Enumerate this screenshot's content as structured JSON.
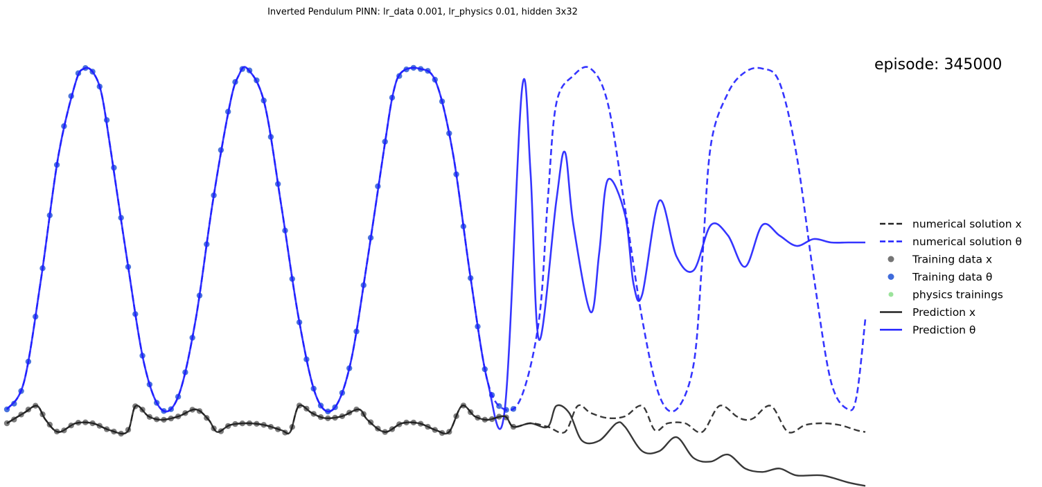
{
  "chart_data": {
    "type": "line",
    "title": "Inverted Pendulum PINN: lr_data 0.001, lr_physics 0.01, hidden 3x32",
    "annotation": "episode: 345000",
    "xlabel": "",
    "ylabel": "",
    "axes_visible": false,
    "grid": false,
    "xlim": [
      0,
      1
    ],
    "ylim": [
      -0.3,
      1.05
    ],
    "training_cutoff": 0.59,
    "legend_placement": "right",
    "legend": [
      {
        "label": "numerical solution x",
        "style": "dashed",
        "color": "#222222"
      },
      {
        "label": "numerical solution θ",
        "style": "dashed",
        "color": "#1f1fff"
      },
      {
        "label": "Training data x",
        "style": "marker",
        "color": "#666666"
      },
      {
        "label": "Training data θ",
        "style": "marker",
        "color": "#2a5bd7"
      },
      {
        "label": "physics trainings",
        "style": "marker",
        "color": "#90e090"
      },
      {
        "label": "Prediction x",
        "style": "solid",
        "color": "#222222"
      },
      {
        "label": "Prediction θ",
        "style": "solid",
        "color": "#1f1fff"
      }
    ],
    "series": [
      {
        "name": "numerical solution θ",
        "x": [
          0,
          0.02,
          0.04,
          0.06,
          0.08,
          0.09,
          0.1,
          0.11,
          0.12,
          0.14,
          0.16,
          0.18,
          0.2,
          0.22,
          0.24,
          0.26,
          0.27,
          0.28,
          0.3,
          0.32,
          0.34,
          0.36,
          0.38,
          0.4,
          0.42,
          0.44,
          0.45,
          0.46,
          0.48,
          0.5,
          0.52,
          0.54,
          0.56,
          0.58,
          0.6,
          0.62,
          0.63,
          0.64,
          0.66,
          0.68,
          0.7,
          0.72,
          0.74,
          0.76,
          0.78,
          0.8,
          0.81,
          0.82,
          0.84,
          0.86,
          0.88,
          0.9,
          0.92,
          0.94,
          0.96,
          0.98,
          0.99,
          1.0
        ],
        "y": [
          0.02,
          0.1,
          0.4,
          0.75,
          0.96,
          1.0,
          0.99,
          0.93,
          0.78,
          0.45,
          0.15,
          0.02,
          0.06,
          0.28,
          0.62,
          0.9,
          0.98,
          1.0,
          0.9,
          0.6,
          0.28,
          0.06,
          0.02,
          0.15,
          0.45,
          0.78,
          0.93,
          0.99,
          1.0,
          0.96,
          0.75,
          0.4,
          0.1,
          0.02,
          0.06,
          0.28,
          0.62,
          0.9,
          0.98,
          1.0,
          0.9,
          0.6,
          0.28,
          0.06,
          0.02,
          0.15,
          0.45,
          0.78,
          0.93,
          0.99,
          1.0,
          0.96,
          0.75,
          0.4,
          0.1,
          0.02,
          0.06,
          0.28
        ]
      },
      {
        "name": "Prediction θ",
        "x": [
          0,
          0.02,
          0.04,
          0.06,
          0.08,
          0.09,
          0.1,
          0.11,
          0.12,
          0.14,
          0.16,
          0.18,
          0.2,
          0.22,
          0.24,
          0.26,
          0.27,
          0.28,
          0.3,
          0.32,
          0.34,
          0.36,
          0.38,
          0.4,
          0.42,
          0.44,
          0.45,
          0.46,
          0.48,
          0.5,
          0.52,
          0.54,
          0.56,
          0.58,
          0.6,
          0.61,
          0.62,
          0.64,
          0.65,
          0.66,
          0.68,
          0.69,
          0.7,
          0.72,
          0.73,
          0.74,
          0.76,
          0.78,
          0.8,
          0.82,
          0.84,
          0.86,
          0.88,
          0.9,
          0.92,
          0.94,
          0.96,
          0.98,
          1.0
        ],
        "y": [
          0.02,
          0.1,
          0.4,
          0.75,
          0.96,
          1.0,
          0.99,
          0.93,
          0.78,
          0.45,
          0.15,
          0.02,
          0.06,
          0.28,
          0.62,
          0.9,
          0.98,
          1.0,
          0.9,
          0.6,
          0.28,
          0.06,
          0.02,
          0.15,
          0.45,
          0.78,
          0.93,
          0.99,
          1.0,
          0.96,
          0.75,
          0.4,
          0.1,
          0.02,
          0.94,
          0.7,
          0.22,
          0.62,
          0.76,
          0.55,
          0.3,
          0.47,
          0.68,
          0.58,
          0.38,
          0.35,
          0.62,
          0.46,
          0.42,
          0.55,
          0.52,
          0.43,
          0.55,
          0.52,
          0.49,
          0.51,
          0.5,
          0.5,
          0.5
        ]
      },
      {
        "name": "numerical solution x",
        "x": [
          0,
          0.02,
          0.035,
          0.045,
          0.06,
          0.08,
          0.1,
          0.12,
          0.14,
          0.15,
          0.165,
          0.18,
          0.2,
          0.22,
          0.235,
          0.245,
          0.26,
          0.28,
          0.3,
          0.32,
          0.33,
          0.34,
          0.355,
          0.37,
          0.39,
          0.41,
          0.42,
          0.44,
          0.46,
          0.48,
          0.5,
          0.515,
          0.53,
          0.545,
          0.56,
          0.58,
          0.59,
          0.61,
          0.63,
          0.65,
          0.665,
          0.68,
          0.7,
          0.72,
          0.74,
          0.755,
          0.77,
          0.79,
          0.81,
          0.83,
          0.85,
          0.86,
          0.87,
          0.89,
          0.91,
          0.93,
          0.95,
          0.97,
          0.99,
          1.0
        ],
        "y": [
          -0.02,
          0.01,
          0.03,
          -0.01,
          -0.045,
          -0.02,
          -0.02,
          -0.04,
          -0.045,
          0.03,
          0.0,
          -0.01,
          0.0,
          0.02,
          -0.01,
          -0.045,
          -0.025,
          -0.02,
          -0.025,
          -0.04,
          -0.045,
          0.03,
          0.01,
          -0.005,
          0.0,
          0.02,
          -0.01,
          -0.045,
          -0.02,
          -0.02,
          -0.04,
          -0.045,
          0.03,
          0.0,
          -0.01,
          0.0,
          -0.03,
          -0.02,
          -0.03,
          -0.045,
          0.03,
          0.01,
          -0.005,
          0.0,
          0.03,
          -0.04,
          -0.02,
          -0.02,
          -0.045,
          0.03,
          0.0,
          -0.01,
          -0.005,
          0.03,
          -0.045,
          -0.025,
          -0.02,
          -0.025,
          -0.04,
          -0.045
        ]
      },
      {
        "name": "Prediction x",
        "x": [
          0,
          0.02,
          0.035,
          0.045,
          0.06,
          0.08,
          0.1,
          0.12,
          0.14,
          0.15,
          0.165,
          0.18,
          0.2,
          0.22,
          0.235,
          0.245,
          0.26,
          0.28,
          0.3,
          0.32,
          0.33,
          0.34,
          0.355,
          0.37,
          0.39,
          0.41,
          0.42,
          0.44,
          0.46,
          0.48,
          0.5,
          0.515,
          0.53,
          0.545,
          0.56,
          0.58,
          0.59,
          0.61,
          0.63,
          0.64,
          0.655,
          0.67,
          0.69,
          0.71,
          0.72,
          0.74,
          0.76,
          0.78,
          0.8,
          0.82,
          0.84,
          0.86,
          0.88,
          0.9,
          0.92,
          0.95,
          0.98,
          1.0
        ],
        "y": [
          -0.02,
          0.01,
          0.03,
          -0.01,
          -0.045,
          -0.02,
          -0.02,
          -0.04,
          -0.045,
          0.03,
          0.0,
          -0.01,
          0.0,
          0.02,
          -0.01,
          -0.045,
          -0.025,
          -0.02,
          -0.025,
          -0.04,
          -0.045,
          0.03,
          0.01,
          -0.005,
          0.0,
          0.02,
          -0.01,
          -0.045,
          -0.02,
          -0.02,
          -0.04,
          -0.045,
          0.03,
          0.0,
          -0.01,
          0.0,
          -0.03,
          -0.02,
          -0.03,
          0.03,
          0.01,
          -0.07,
          -0.07,
          -0.02,
          -0.03,
          -0.1,
          -0.1,
          -0.06,
          -0.12,
          -0.13,
          -0.11,
          -0.15,
          -0.16,
          -0.15,
          -0.17,
          -0.17,
          -0.19,
          -0.2
        ]
      }
    ],
    "training_data_theta_count": 72,
    "training_data_x_count": 72
  }
}
